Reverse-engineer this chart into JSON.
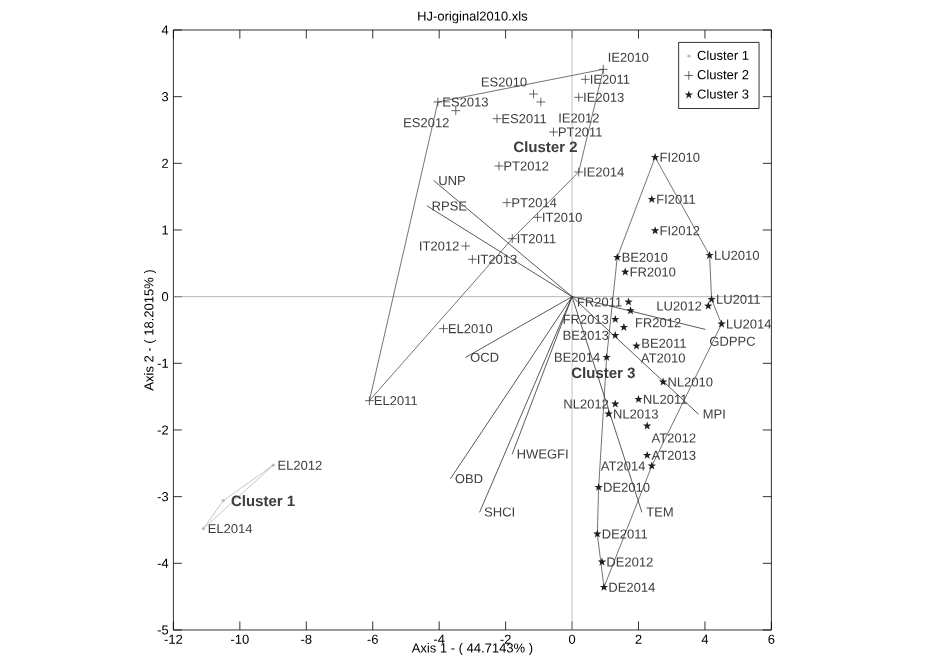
{
  "chart_data": {
    "type": "scatter",
    "title": "HJ-original2010.xls",
    "xlabel": "Axis 1 - ( 44.7143% )",
    "ylabel": "Axis 2 - ( 18.2015% )",
    "xlim": [
      -12,
      6
    ],
    "ylim": [
      -5,
      4
    ],
    "xticks": [
      -12,
      -10,
      -8,
      -6,
      -4,
      -2,
      0,
      2,
      4,
      6
    ],
    "yticks": [
      -5,
      -4,
      -3,
      -2,
      -1,
      0,
      1,
      2,
      3,
      4
    ],
    "grid": false,
    "legend": "top right",
    "ref_lines": [
      {
        "axis": "x",
        "value": 0,
        "color": "#b0b0b0"
      },
      {
        "axis": "y",
        "value": 0,
        "color": "#a4a4a4"
      }
    ],
    "series": [
      {
        "name": "Cluster 1",
        "color": "#b8b8b8",
        "marker": "circle",
        "x": [
          -9.0,
          -10.5,
          -11.1
        ],
        "values": [
          -2.53,
          -3.06,
          -3.48
        ]
      },
      {
        "name": "Cluster 2",
        "color": "#404040",
        "marker": "cross",
        "x": [
          -3.87,
          -6.1,
          -4.04,
          -3.5,
          -2.26,
          -1.16,
          -0.94,
          0.2,
          0.4,
          0.94,
          -0.56,
          -2.2,
          0.2,
          -1.96,
          -1.04,
          -1.8,
          -3.2,
          -3.0
        ],
        "values": [
          -0.48,
          -1.56,
          2.92,
          2.79,
          2.67,
          3.04,
          2.92,
          2.99,
          3.26,
          3.41,
          2.47,
          1.96,
          1.87,
          1.41,
          1.19,
          0.87,
          0.76,
          0.56
        ]
      },
      {
        "name": "Cluster 3",
        "color": "#202020",
        "marker": "star",
        "x": [
          2.5,
          2.4,
          2.5,
          4.14,
          1.36,
          1.6,
          4.2,
          4.1,
          4.5,
          1.7,
          1.76,
          1.3,
          1.56,
          1.3,
          1.94,
          1.04,
          2.74,
          2.0,
          1.3,
          1.1,
          2.26,
          2.26,
          2.4,
          0.8,
          0.76,
          0.9,
          0.96
        ],
        "values": [
          2.09,
          1.46,
          0.99,
          0.62,
          0.59,
          0.37,
          -0.04,
          -0.14,
          -0.41,
          -0.08,
          -0.21,
          -0.34,
          -0.46,
          -0.58,
          -0.74,
          -0.91,
          -1.28,
          -1.54,
          -1.61,
          -1.76,
          -1.94,
          -2.38,
          -2.54,
          -2.86,
          -3.56,
          -3.98,
          -4.36
        ]
      },
      {
        "type": "line",
        "color": "#b8b8b8",
        "x": [
          -9.0,
          -11.1,
          -10.5,
          null,
          -10.5,
          -9.0
        ],
        "values": [
          -2.53,
          -3.48,
          -3.06,
          null,
          -3.06,
          -2.53
        ]
      },
      {
        "type": "line",
        "color": "#505050",
        "x": [
          -6.1,
          -4.04,
          0.94,
          0.2,
          -1.8,
          null,
          -1.8,
          -6.1
        ],
        "values": [
          -1.56,
          2.92,
          3.41,
          1.87,
          0.87,
          null,
          0.87,
          -1.56
        ]
      },
      {
        "type": "line",
        "color": "#505050",
        "x": [
          2.5,
          4.14,
          4.2,
          4.5,
          2.4,
          0.96,
          0.76,
          0.8,
          1.04,
          1.36,
          null,
          1.36,
          2.5
        ],
        "values": [
          2.09,
          0.62,
          -0.04,
          -0.41,
          -2.54,
          -4.36,
          -3.56,
          -2.86,
          -0.91,
          0.59,
          null,
          0.59,
          2.09
        ]
      },
      {
        "type": "line",
        "color": "#303030",
        "x": [
          0,
          -4.16,
          null,
          0,
          -4.36,
          null,
          0,
          -3.2,
          null,
          0,
          -3.66,
          null,
          0,
          -2.78,
          null,
          0,
          -1.8,
          null,
          0,
          2.1,
          null,
          0,
          4.0,
          null,
          0,
          3.8
        ],
        "values": [
          0,
          1.74,
          null,
          0,
          1.36,
          null,
          0,
          -0.91,
          null,
          0,
          -2.73,
          null,
          0,
          -3.23,
          null,
          0,
          -2.36,
          null,
          0,
          -3.23,
          null,
          0,
          -0.49,
          null,
          0,
          -1.76
        ]
      }
    ],
    "annotations": [
      {
        "text": "Cluster 1",
        "x": -10.4,
        "y": -3.06
      },
      {
        "text": "Cluster 2",
        "x": -1.9,
        "y": 1.89
      },
      {
        "text": "Cluster 3",
        "x": 2.1,
        "y": -0.96
      },
      {
        "text": "UNP",
        "x": -4.16,
        "y": 1.74
      },
      {
        "text": "RPSE",
        "x": -4.36,
        "y": 1.36
      },
      {
        "text": "OCD",
        "x": -3.2,
        "y": -0.91
      },
      {
        "text": "OBD",
        "x": -3.66,
        "y": -2.73
      },
      {
        "text": "SHCI",
        "x": -2.78,
        "y": -3.23
      },
      {
        "text": "HWEGFI",
        "x": -1.8,
        "y": -2.36
      },
      {
        "text": "TEM",
        "x": 2.1,
        "y": -3.23
      },
      {
        "text": "GDPPC",
        "x": 4.0,
        "y": -0.49
      },
      {
        "text": "MPI",
        "x": 3.8,
        "y": -1.76
      },
      {
        "text": "EL2012",
        "x": -9.0,
        "y": -2.53
      },
      {
        "text": "EL2014",
        "x": -11.1,
        "y": -3.48
      },
      {
        "text": "EL2010",
        "x": -3.87,
        "y": -0.48
      },
      {
        "text": "EL2011",
        "x": -6.1,
        "y": -1.56
      },
      {
        "text": "ES2013",
        "x": -4.04,
        "y": 2.92
      },
      {
        "text": "ES2012",
        "x": -3.5,
        "y": 2.79
      },
      {
        "text": "ES2011",
        "x": -2.26,
        "y": 2.67
      },
      {
        "text": "ES2010",
        "x": -1.16,
        "y": 3.04
      },
      {
        "text": "IE2012",
        "x": -0.94,
        "y": 2.92
      },
      {
        "text": "IE2013",
        "x": 0.2,
        "y": 2.99
      },
      {
        "text": "IE2011",
        "x": 0.4,
        "y": 3.26
      },
      {
        "text": "IE2010",
        "x": 0.94,
        "y": 3.41
      },
      {
        "text": "PT2011",
        "x": -0.56,
        "y": 2.47
      },
      {
        "text": "PT2012",
        "x": -2.2,
        "y": 1.96
      },
      {
        "text": "IE2014",
        "x": 0.2,
        "y": 1.87
      },
      {
        "text": "PT2014",
        "x": -1.96,
        "y": 1.41
      },
      {
        "text": "IT2010",
        "x": -1.04,
        "y": 1.19
      },
      {
        "text": "IT2011",
        "x": -1.8,
        "y": 0.87
      },
      {
        "text": "IT2012",
        "x": -3.2,
        "y": 0.76
      },
      {
        "text": "IT2013",
        "x": -3.0,
        "y": 0.56
      },
      {
        "text": "FI2010",
        "x": 2.5,
        "y": 2.09
      },
      {
        "text": "FI2011",
        "x": 2.4,
        "y": 1.46
      },
      {
        "text": "FI2012",
        "x": 2.5,
        "y": 0.99
      },
      {
        "text": "LU2010",
        "x": 4.14,
        "y": 0.62
      },
      {
        "text": "BE2010",
        "x": 1.36,
        "y": 0.59
      },
      {
        "text": "FR2010",
        "x": 1.6,
        "y": 0.37
      },
      {
        "text": "LU2011",
        "x": 4.2,
        "y": -0.04
      },
      {
        "text": "LU2012",
        "x": 4.1,
        "y": -0.14
      },
      {
        "text": "LU2014",
        "x": 4.5,
        "y": -0.41
      },
      {
        "text": "FR2011",
        "x": 1.7,
        "y": -0.08
      },
      {
        "text": "FR2012",
        "x": 1.76,
        "y": -0.21
      },
      {
        "text": "FR2013",
        "x": 1.3,
        "y": -0.34
      },
      {
        "text": "BE2011",
        "x": 1.56,
        "y": -0.46
      },
      {
        "text": "BE2013",
        "x": 1.3,
        "y": -0.58
      },
      {
        "text": "AT2010",
        "x": 1.94,
        "y": -0.74
      },
      {
        "text": "BE2014",
        "x": 1.04,
        "y": -0.91
      },
      {
        "text": "NL2010",
        "x": 2.74,
        "y": -1.28
      },
      {
        "text": "NL2011",
        "x": 2.0,
        "y": -1.54
      },
      {
        "text": "NL2012",
        "x": 1.3,
        "y": -1.61
      },
      {
        "text": "NL2013",
        "x": 1.1,
        "y": -1.76
      },
      {
        "text": "AT2012",
        "x": 2.26,
        "y": -1.94
      },
      {
        "text": "AT2013",
        "x": 2.26,
        "y": -2.38
      },
      {
        "text": "AT2014",
        "x": 2.4,
        "y": -2.54
      },
      {
        "text": "DE2010",
        "x": 0.8,
        "y": -2.86
      },
      {
        "text": "DE2011",
        "x": 0.76,
        "y": -3.56
      },
      {
        "text": "DE2012",
        "x": 0.9,
        "y": -3.98
      },
      {
        "text": "DE2014",
        "x": 0.96,
        "y": -4.36
      }
    ]
  }
}
